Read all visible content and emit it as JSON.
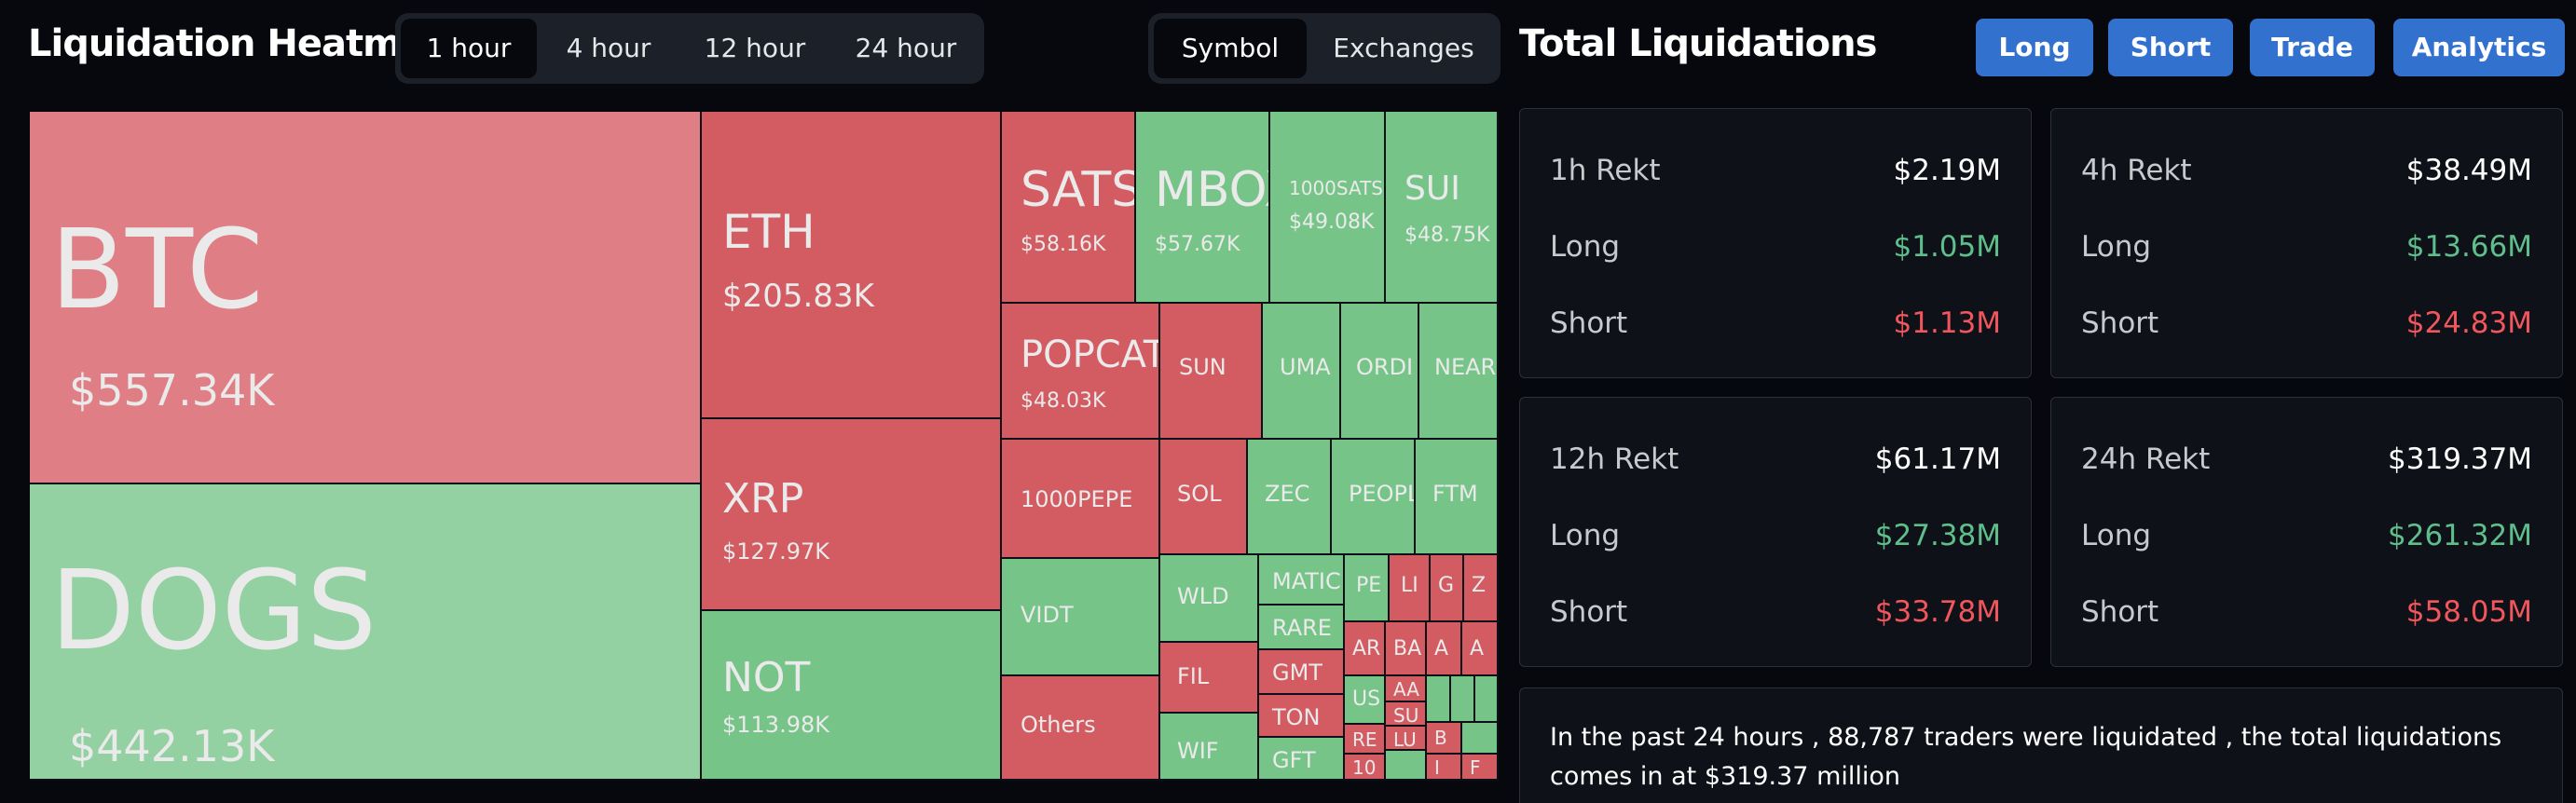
{
  "heatmap": {
    "title": "Liquidation Heatmap",
    "time_tabs": [
      "1 hour",
      "4 hour",
      "12 hour",
      "24 hour"
    ],
    "active_time_tab": "1 hour",
    "view_tabs": [
      "Symbol",
      "Exchanges"
    ],
    "active_view_tab": "Symbol"
  },
  "total": {
    "title": "Total Liquidations",
    "buttons": [
      "Long",
      "Short",
      "Trade",
      "Analytics"
    ]
  },
  "colors": {
    "long_tile": "#77c489",
    "short_tile": "#d35c62",
    "accent": "#3371cf"
  },
  "treemap_tiles": [
    {
      "symbol": "BTC",
      "value": "$557.34K",
      "color": "red"
    },
    {
      "symbol": "DOGS",
      "value": "$442.13K",
      "color": "green"
    },
    {
      "symbol": "ETH",
      "value": "$205.83K",
      "color": "red"
    },
    {
      "symbol": "XRP",
      "value": "$127.97K",
      "color": "red"
    },
    {
      "symbol": "NOT",
      "value": "$113.98K",
      "color": "green"
    },
    {
      "symbol": "SATS",
      "value": "$58.16K",
      "color": "red"
    },
    {
      "symbol": "MBOX",
      "value": "$57.67K",
      "color": "green"
    },
    {
      "symbol": "1000SATS",
      "value": "$49.08K",
      "color": "green"
    },
    {
      "symbol": "SUI",
      "value": "$48.75K",
      "color": "green"
    },
    {
      "symbol": "POPCAT",
      "value": "$48.03K",
      "color": "red"
    },
    {
      "symbol": "SUN",
      "value": "",
      "color": "red"
    },
    {
      "symbol": "UMA",
      "value": "",
      "color": "green"
    },
    {
      "symbol": "ORDI",
      "value": "",
      "color": "green"
    },
    {
      "symbol": "NEAR",
      "value": "",
      "color": "green"
    },
    {
      "symbol": "1000PEPE",
      "value": "",
      "color": "red"
    },
    {
      "symbol": "SOL",
      "value": "",
      "color": "red"
    },
    {
      "symbol": "ZEC",
      "value": "",
      "color": "green"
    },
    {
      "symbol": "PEOPLE",
      "value": "",
      "color": "green"
    },
    {
      "symbol": "FTM",
      "value": "",
      "color": "green"
    },
    {
      "symbol": "VIDT",
      "value": "",
      "color": "green"
    },
    {
      "symbol": "Others",
      "value": "",
      "color": "red"
    },
    {
      "symbol": "WLD",
      "value": "",
      "color": "green"
    },
    {
      "symbol": "FIL",
      "value": "",
      "color": "red"
    },
    {
      "symbol": "WIF",
      "value": "",
      "color": "green"
    },
    {
      "symbol": "MATIC",
      "value": "",
      "color": "green"
    },
    {
      "symbol": "RARE",
      "value": "",
      "color": "green"
    },
    {
      "symbol": "GMT",
      "value": "",
      "color": "red"
    },
    {
      "symbol": "TON",
      "value": "",
      "color": "red"
    },
    {
      "symbol": "GFT",
      "value": "",
      "color": "green"
    },
    {
      "symbol": "PE",
      "value": "",
      "color": "green"
    },
    {
      "symbol": "LI",
      "value": "",
      "color": "red"
    },
    {
      "symbol": "G",
      "value": "",
      "color": "red"
    },
    {
      "symbol": "Z",
      "value": "",
      "color": "red"
    },
    {
      "symbol": "AR",
      "value": "",
      "color": "red"
    },
    {
      "symbol": "BA",
      "value": "",
      "color": "red"
    },
    {
      "symbol": "A",
      "value": "",
      "color": "red"
    },
    {
      "symbol": "A",
      "value": "",
      "color": "red"
    },
    {
      "symbol": "US",
      "value": "",
      "color": "green"
    },
    {
      "symbol": "AA",
      "value": "",
      "color": "red"
    },
    {
      "symbol": "RE",
      "value": "",
      "color": "red"
    },
    {
      "symbol": "SU",
      "value": "",
      "color": "red"
    },
    {
      "symbol": "LU",
      "value": "",
      "color": "red"
    },
    {
      "symbol": "B",
      "value": "",
      "color": "red"
    },
    {
      "symbol": "10",
      "value": "",
      "color": "red"
    },
    {
      "symbol": "I",
      "value": "",
      "color": "red"
    },
    {
      "symbol": "F",
      "value": "",
      "color": "red"
    },
    {
      "symbol": "",
      "value": "",
      "color": "green"
    },
    {
      "symbol": "",
      "value": "",
      "color": "green"
    },
    {
      "symbol": "",
      "value": "",
      "color": "green"
    },
    {
      "symbol": "",
      "value": "",
      "color": "green"
    },
    {
      "symbol": "",
      "value": "",
      "color": "green"
    },
    {
      "symbol": "",
      "value": "",
      "color": "green"
    }
  ],
  "rekt_cards": [
    {
      "label": "1h Rekt",
      "total": "$2.19M",
      "long_label": "Long",
      "long": "$1.05M",
      "short_label": "Short",
      "short": "$1.13M"
    },
    {
      "label": "4h Rekt",
      "total": "$38.49M",
      "long_label": "Long",
      "long": "$13.66M",
      "short_label": "Short",
      "short": "$24.83M"
    },
    {
      "label": "12h Rekt",
      "total": "$61.17M",
      "long_label": "Long",
      "long": "$27.38M",
      "short_label": "Short",
      "short": "$33.78M"
    },
    {
      "label": "24h Rekt",
      "total": "$319.37M",
      "long_label": "Long",
      "long": "$261.32M",
      "short_label": "Short",
      "short": "$58.05M"
    }
  ],
  "summary": {
    "text": "In the past 24 hours , 88,787 traders were liquidated , the total liquidations comes in at $319.37 million"
  }
}
